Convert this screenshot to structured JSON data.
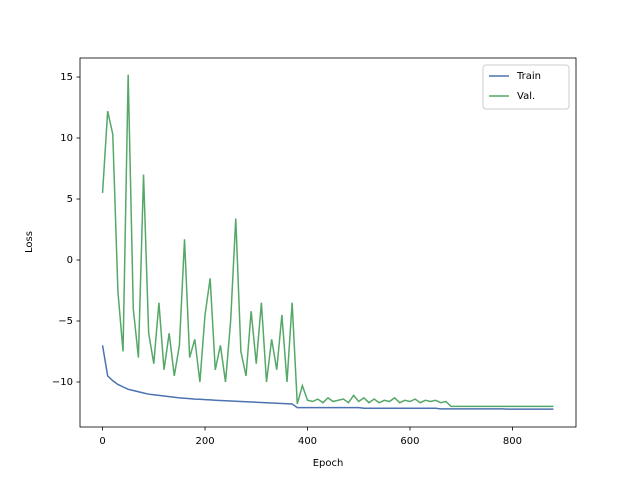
{
  "chart_data": {
    "type": "line",
    "x_label": "Epoch",
    "y_label": "Loss",
    "x": [
      0,
      10,
      20,
      30,
      40,
      50,
      60,
      70,
      80,
      90,
      100,
      110,
      120,
      130,
      140,
      150,
      160,
      170,
      180,
      190,
      200,
      210,
      220,
      230,
      240,
      250,
      260,
      270,
      280,
      290,
      300,
      310,
      320,
      330,
      340,
      350,
      360,
      370,
      380,
      390,
      400,
      410,
      420,
      430,
      440,
      450,
      460,
      470,
      480,
      490,
      500,
      510,
      520,
      530,
      540,
      550,
      560,
      570,
      580,
      590,
      600,
      610,
      620,
      630,
      640,
      650,
      660,
      670,
      680,
      690,
      700,
      710,
      720,
      730,
      740,
      750,
      760,
      770,
      780,
      790,
      800,
      810,
      820,
      830,
      840,
      850,
      860,
      870,
      880
    ],
    "series": [
      {
        "name": "Train",
        "color": "#4c72b0",
        "values": [
          -7.0,
          -9.5,
          -9.9,
          -10.2,
          -10.4,
          -10.6,
          -10.7,
          -10.8,
          -10.9,
          -11.0,
          -11.05,
          -11.1,
          -11.15,
          -11.2,
          -11.25,
          -11.3,
          -11.33,
          -11.36,
          -11.4,
          -11.42,
          -11.45,
          -11.47,
          -11.5,
          -11.52,
          -11.54,
          -11.56,
          -11.58,
          -11.6,
          -11.62,
          -11.64,
          -11.66,
          -11.68,
          -11.7,
          -11.72,
          -11.74,
          -11.76,
          -11.78,
          -11.8,
          -12.1,
          -12.1,
          -12.1,
          -12.1,
          -12.1,
          -12.1,
          -12.1,
          -12.1,
          -12.1,
          -12.1,
          -12.1,
          -12.1,
          -12.1,
          -12.15,
          -12.15,
          -12.15,
          -12.15,
          -12.15,
          -12.15,
          -12.15,
          -12.15,
          -12.15,
          -12.15,
          -12.15,
          -12.15,
          -12.15,
          -12.15,
          -12.15,
          -12.2,
          -12.2,
          -12.2,
          -12.2,
          -12.2,
          -12.2,
          -12.2,
          -12.2,
          -12.2,
          -12.2,
          -12.2,
          -12.2,
          -12.2,
          -12.22,
          -12.22,
          -12.22,
          -12.22,
          -12.22,
          -12.22,
          -12.22,
          -12.22,
          -12.22,
          -12.22
        ]
      },
      {
        "name": "Val.",
        "color": "#55a868",
        "values": [
          5.5,
          12.2,
          10.3,
          -2.6,
          -7.5,
          15.2,
          -4,
          -8,
          7.0,
          -6,
          -8.5,
          -3.5,
          -9,
          -6,
          -9.5,
          -7,
          1.7,
          -8,
          -6.5,
          -10,
          -4.5,
          -1.5,
          -9,
          -7,
          -10,
          -5,
          3.4,
          -7.5,
          -9.5,
          -4.2,
          -8.5,
          -3.5,
          -10,
          -6.5,
          -9,
          -4.5,
          -10,
          -3.5,
          -11.8,
          -10.3,
          -11.5,
          -11.6,
          -11.4,
          -11.7,
          -11.3,
          -11.6,
          -11.5,
          -11.4,
          -11.7,
          -11.1,
          -11.6,
          -11.3,
          -11.7,
          -11.4,
          -11.7,
          -11.5,
          -11.6,
          -11.3,
          -11.7,
          -11.5,
          -11.6,
          -11.4,
          -11.7,
          -11.5,
          -11.6,
          -11.5,
          -11.7,
          -11.6,
          -12.0,
          -12.0,
          -12.0,
          -12.0,
          -12.0,
          -12.0,
          -12.0,
          -12.0,
          -12.0,
          -12.0,
          -12.0,
          -12.0,
          -12.0,
          -12.0,
          -12.0,
          -12.0,
          -12.0,
          -12.0,
          -12.0,
          -12.0,
          -12.0
        ]
      }
    ],
    "xlim": [
      -44,
      924
    ],
    "ylim": [
      -13.69,
      16.56
    ],
    "xticks": [
      0,
      200,
      400,
      600,
      800
    ],
    "yticks": [
      {
        "value": -10,
        "label": "−10"
      },
      {
        "value": -5,
        "label": "−5"
      },
      0,
      5,
      10,
      15
    ],
    "legend": "upper right"
  }
}
